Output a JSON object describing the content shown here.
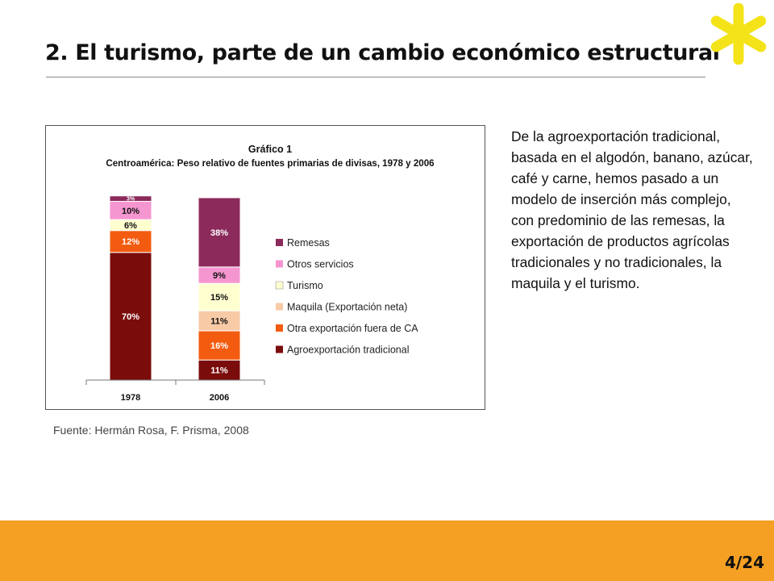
{
  "slide": {
    "title": "2. El turismo, parte de un cambio económico estructural",
    "source": "Fuente: Hermán Rosa, F. Prisma, 2008",
    "body": "De la agroexportación tradicional, basada en el algodón, banano, azúcar, café y carne, hemos pasado a un modelo de inserción más complejo, con predominio de las remesas, la exportación de productos agrícolas tradicionales y no tradicionales, la maquila y el turismo.",
    "page": "4/24",
    "logo_icon": "asterisk-icon"
  },
  "colors": {
    "accent_orange": "#f5a023",
    "asterisk_yellow": "#f4e318"
  },
  "chart_data": {
    "type": "bar",
    "stacked": true,
    "title": "Gráfico 1",
    "subtitle": "Centroamérica: Peso relativo de fuentes primarias de divisas, 1978 y 2006",
    "categories": [
      "1978",
      "2006"
    ],
    "ylim": [
      0,
      100
    ],
    "legend_position": "right",
    "grid": false,
    "series": [
      {
        "name": "Agroexportación tradicional",
        "color": "#7b0c0c",
        "values": [
          70,
          11
        ]
      },
      {
        "name": "Otra exportación fuera de CA",
        "color": "#f35c10",
        "values": [
          12,
          16
        ]
      },
      {
        "name": "Maquila (Exportación neta)",
        "color": "#f8caa6",
        "values": [
          0,
          11
        ]
      },
      {
        "name": "Turismo",
        "color": "#ffffd0",
        "values": [
          6,
          15
        ]
      },
      {
        "name": "Otros servicios",
        "color": "#f596d0",
        "values": [
          10,
          9
        ]
      },
      {
        "name": "Remesas",
        "color": "#8c2b5b",
        "values": [
          3,
          38
        ]
      }
    ],
    "data_labels": [
      [
        "70%",
        "12%",
        "",
        "6%",
        "10%",
        "3%"
      ],
      [
        "11%",
        "16%",
        "11%",
        "15%",
        "9%",
        "38%"
      ]
    ],
    "legend_order": [
      "Remesas",
      "Otros servicios",
      "Turismo",
      "Maquila (Exportación neta)",
      "Otra exportación fuera de CA",
      "Agroexportación tradicional"
    ]
  }
}
